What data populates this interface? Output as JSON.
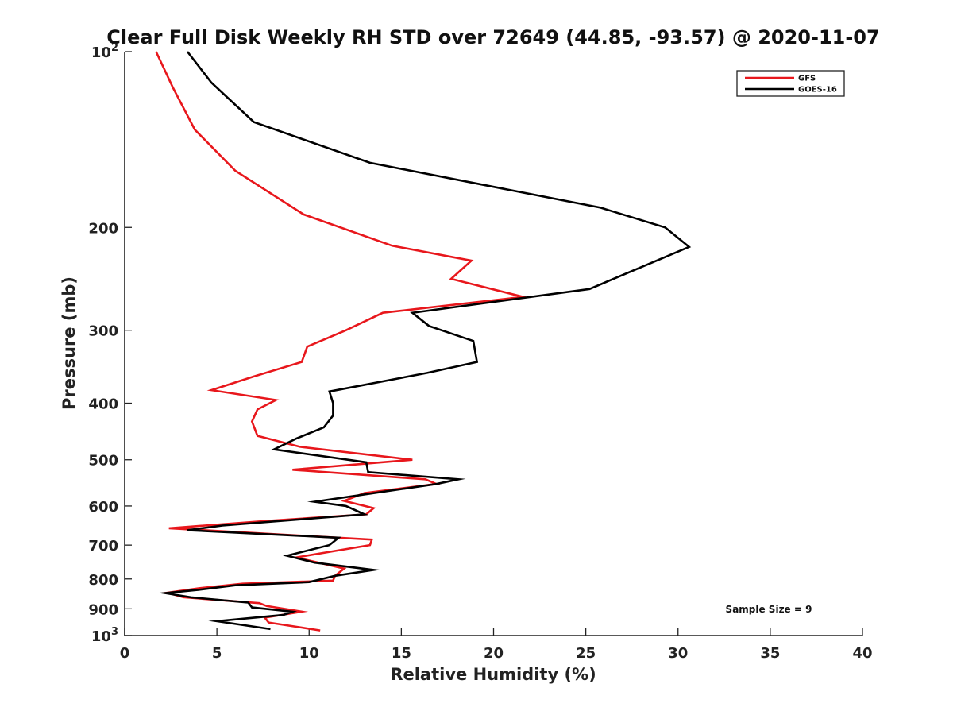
{
  "chart_data": {
    "type": "line",
    "title": "Clear Full Disk Weekly RH STD over 72649 (44.85, -93.57) @ 2020-11-07",
    "xlabel": "Relative Humidity (%)",
    "ylabel": "Pressure (mb)",
    "xlim": [
      0,
      40
    ],
    "ylim": [
      100,
      1000
    ],
    "y_scale": "log",
    "y_reversed": true,
    "x_ticks": [
      0,
      5,
      10,
      15,
      20,
      25,
      30,
      35,
      40
    ],
    "y_ticks": [
      {
        "value": 100,
        "base": "10",
        "exp": "2"
      },
      {
        "value": 200,
        "label": "200"
      },
      {
        "value": 300,
        "label": "300"
      },
      {
        "value": 400,
        "label": "400"
      },
      {
        "value": 500,
        "label": "500"
      },
      {
        "value": 600,
        "label": "600"
      },
      {
        "value": 700,
        "label": "700"
      },
      {
        "value": 800,
        "label": "800"
      },
      {
        "value": 900,
        "label": "900"
      },
      {
        "value": 1000,
        "base": "10",
        "exp": "3"
      }
    ],
    "grid": false,
    "legend_position": "top-right",
    "sample_size_label": "Sample Size = 9",
    "series": [
      {
        "name": "GFS",
        "color": "#e8171c",
        "points": [
          [
            1.7,
            100
          ],
          [
            2.6,
            115
          ],
          [
            3.8,
            136
          ],
          [
            6.0,
            160
          ],
          [
            9.7,
            190
          ],
          [
            14.5,
            215
          ],
          [
            18.8,
            228
          ],
          [
            17.7,
            245
          ],
          [
            21.6,
            263
          ],
          [
            14.0,
            280
          ],
          [
            12.0,
            300
          ],
          [
            9.9,
            320
          ],
          [
            9.6,
            340
          ],
          [
            7.0,
            360
          ],
          [
            4.7,
            380
          ],
          [
            8.2,
            395
          ],
          [
            7.2,
            410
          ],
          [
            6.9,
            430
          ],
          [
            7.2,
            455
          ],
          [
            9.5,
            475
          ],
          [
            15.6,
            500
          ],
          [
            9.1,
            520
          ],
          [
            16.3,
            540
          ],
          [
            16.9,
            550
          ],
          [
            13.0,
            570
          ],
          [
            11.9,
            588
          ],
          [
            13.5,
            605
          ],
          [
            13.1,
            620
          ],
          [
            7.5,
            637
          ],
          [
            2.4,
            655
          ],
          [
            13.4,
            685
          ],
          [
            13.3,
            700
          ],
          [
            9.3,
            735
          ],
          [
            11.9,
            768
          ],
          [
            11.4,
            790
          ],
          [
            11.3,
            805
          ],
          [
            6.4,
            815
          ],
          [
            4.0,
            830
          ],
          [
            2.3,
            845
          ],
          [
            3.2,
            860
          ],
          [
            7.3,
            880
          ],
          [
            7.7,
            890
          ],
          [
            9.6,
            910
          ],
          [
            7.6,
            932
          ],
          [
            7.8,
            950
          ],
          [
            10.6,
            980
          ]
        ]
      },
      {
        "name": "GOES-16",
        "color": "#000000",
        "points": [
          [
            3.4,
            100
          ],
          [
            4.7,
            113
          ],
          [
            7.0,
            132
          ],
          [
            13.3,
            155
          ],
          [
            25.8,
            185
          ],
          [
            29.3,
            200
          ],
          [
            30.6,
            216
          ],
          [
            25.2,
            255
          ],
          [
            15.6,
            280
          ],
          [
            16.5,
            295
          ],
          [
            18.9,
            313
          ],
          [
            19.1,
            340
          ],
          [
            16.4,
            355
          ],
          [
            11.1,
            382
          ],
          [
            11.3,
            400
          ],
          [
            11.3,
            420
          ],
          [
            10.8,
            440
          ],
          [
            9.3,
            460
          ],
          [
            8.1,
            480
          ],
          [
            13.1,
            505
          ],
          [
            13.2,
            525
          ],
          [
            18.1,
            540
          ],
          [
            16.9,
            550
          ],
          [
            10.3,
            590
          ],
          [
            12.0,
            600
          ],
          [
            13.0,
            620
          ],
          [
            5.3,
            648
          ],
          [
            3.4,
            660
          ],
          [
            11.6,
            680
          ],
          [
            11.1,
            700
          ],
          [
            8.8,
            730
          ],
          [
            10.3,
            750
          ],
          [
            13.5,
            772
          ],
          [
            11.4,
            790
          ],
          [
            10.0,
            810
          ],
          [
            6.0,
            820
          ],
          [
            4.0,
            835
          ],
          [
            2.2,
            846
          ],
          [
            3.6,
            860
          ],
          [
            6.7,
            878
          ],
          [
            6.9,
            895
          ],
          [
            9.1,
            910
          ],
          [
            8.6,
            922
          ],
          [
            5.0,
            945
          ],
          [
            7.9,
            975
          ]
        ]
      }
    ]
  }
}
